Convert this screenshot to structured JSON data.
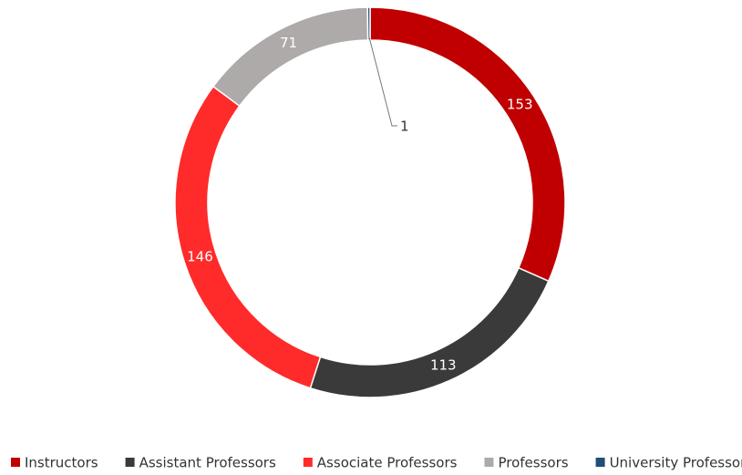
{
  "chart_data": {
    "type": "donut",
    "categories": [
      "Instructors",
      "Assistant Professors",
      "Associate Professors",
      "Professors",
      "University Professor"
    ],
    "values": [
      153,
      113,
      146,
      71,
      1
    ],
    "colors": [
      "#c00000",
      "#3a3a3a",
      "#ff2a2a",
      "#aeaaaa",
      "#1f4e79"
    ],
    "legend": "bottom"
  }
}
